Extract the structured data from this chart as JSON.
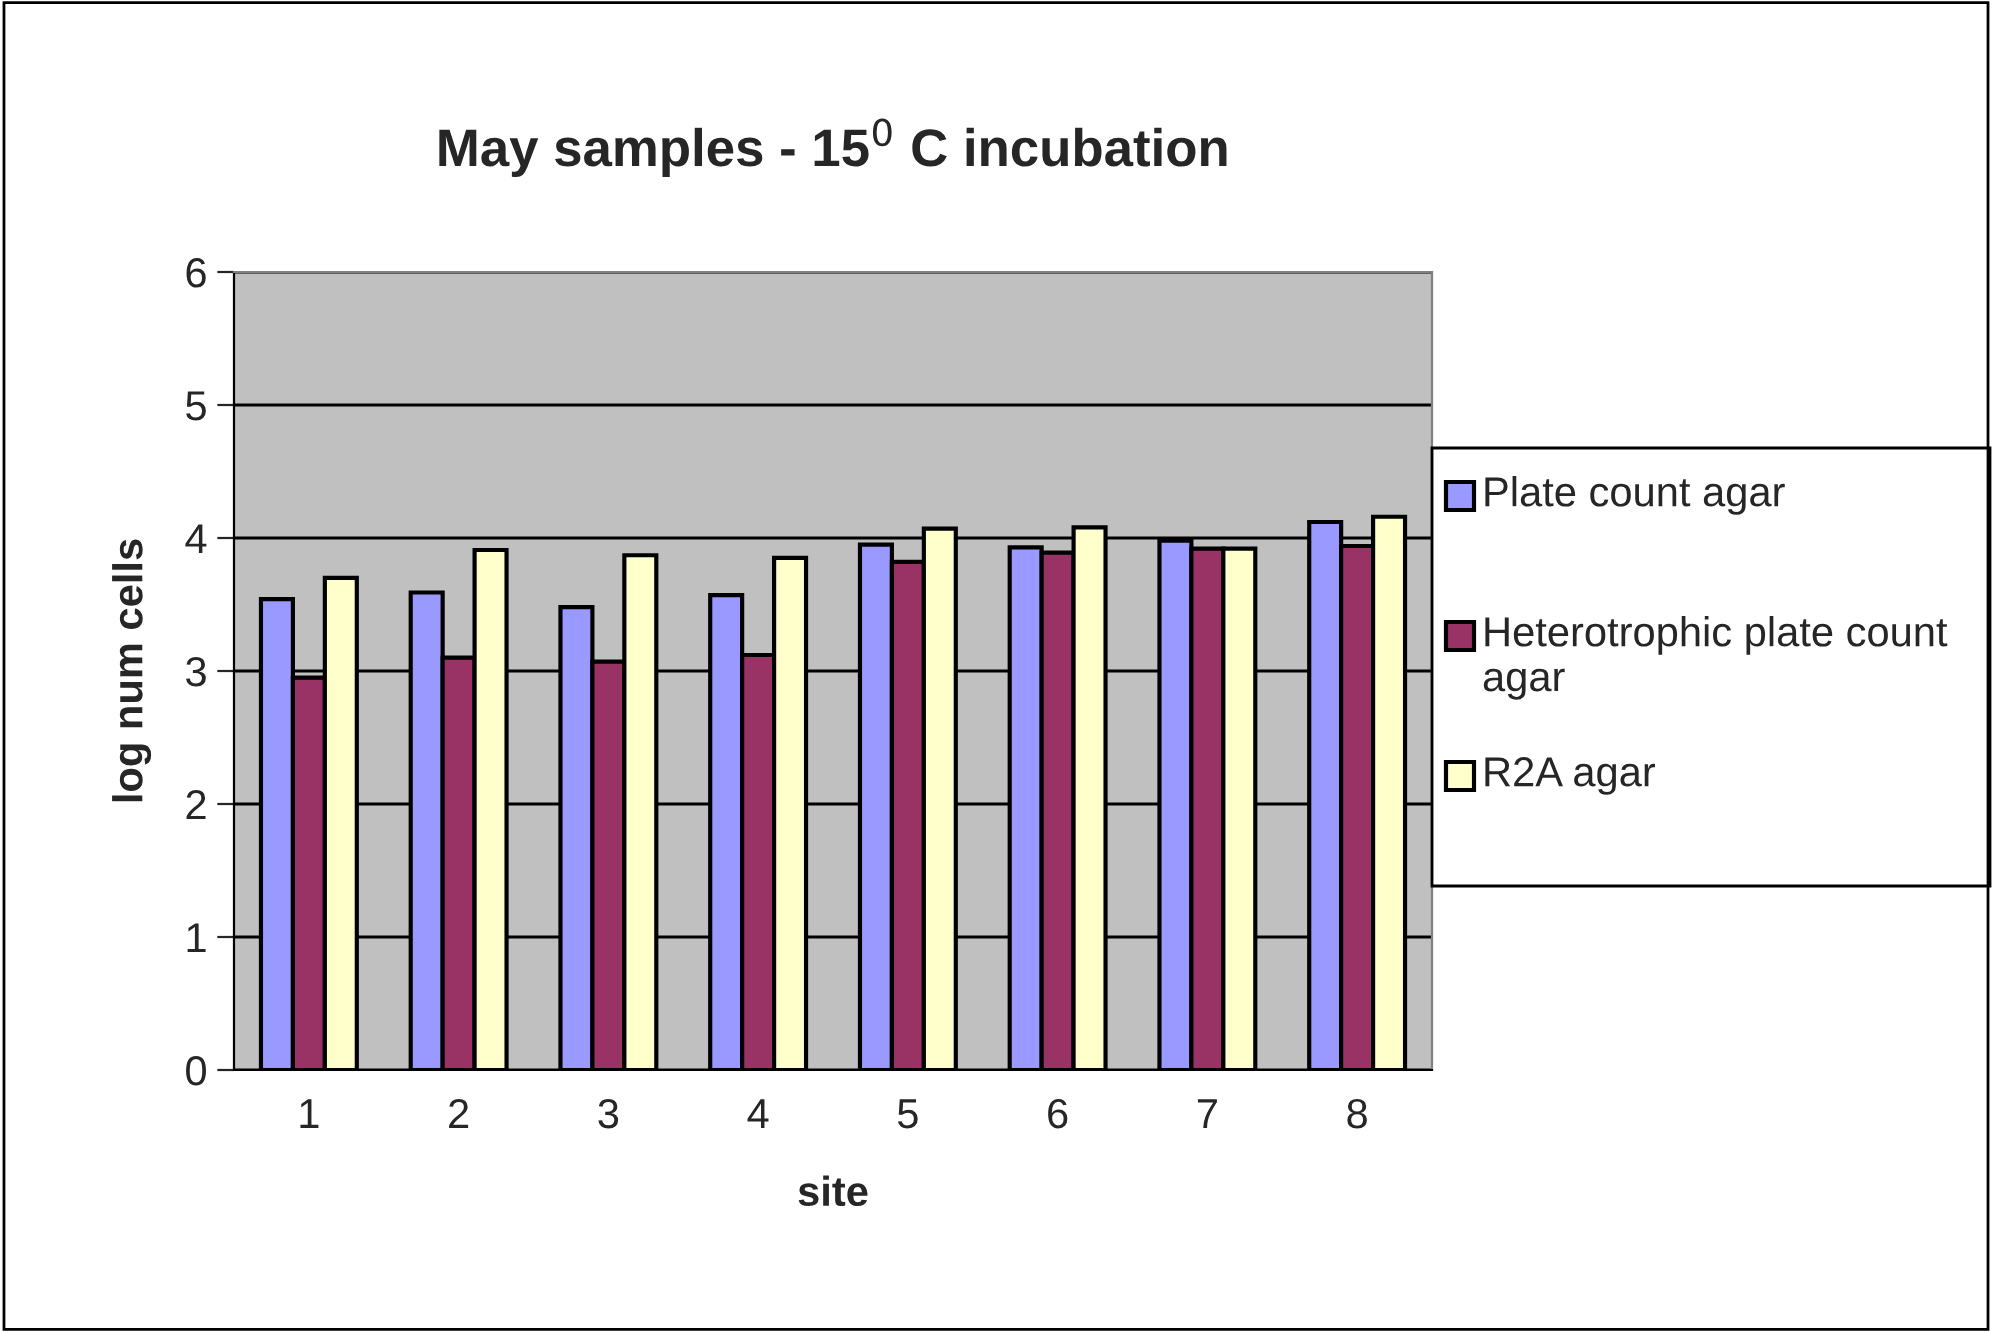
{
  "chart_data": {
    "type": "bar",
    "title": "May samples - 15$^{0}$ C incubation",
    "xlabel": "site",
    "ylabel": "log num cells",
    "categories": [
      "1",
      "2",
      "3",
      "4",
      "5",
      "6",
      "7",
      "8"
    ],
    "series": [
      {
        "name": "Plate count agar",
        "color": "#9999ff",
        "values": [
          3.54,
          3.59,
          3.48,
          3.57,
          3.95,
          3.93,
          3.98,
          4.12
        ]
      },
      {
        "name": "Heterotrophic plate count agar",
        "color": "#993366",
        "values": [
          2.95,
          3.1,
          3.07,
          3.12,
          3.82,
          3.89,
          3.92,
          3.94
        ]
      },
      {
        "name": "R2A agar",
        "color": "#ffffcc",
        "values": [
          3.7,
          3.91,
          3.87,
          3.85,
          4.07,
          4.08,
          3.92,
          4.16
        ]
      }
    ],
    "ylim": [
      0,
      6
    ],
    "yticks": [
      0,
      1,
      2,
      3,
      4,
      5,
      6
    ],
    "grid": "y",
    "legend": "right"
  }
}
